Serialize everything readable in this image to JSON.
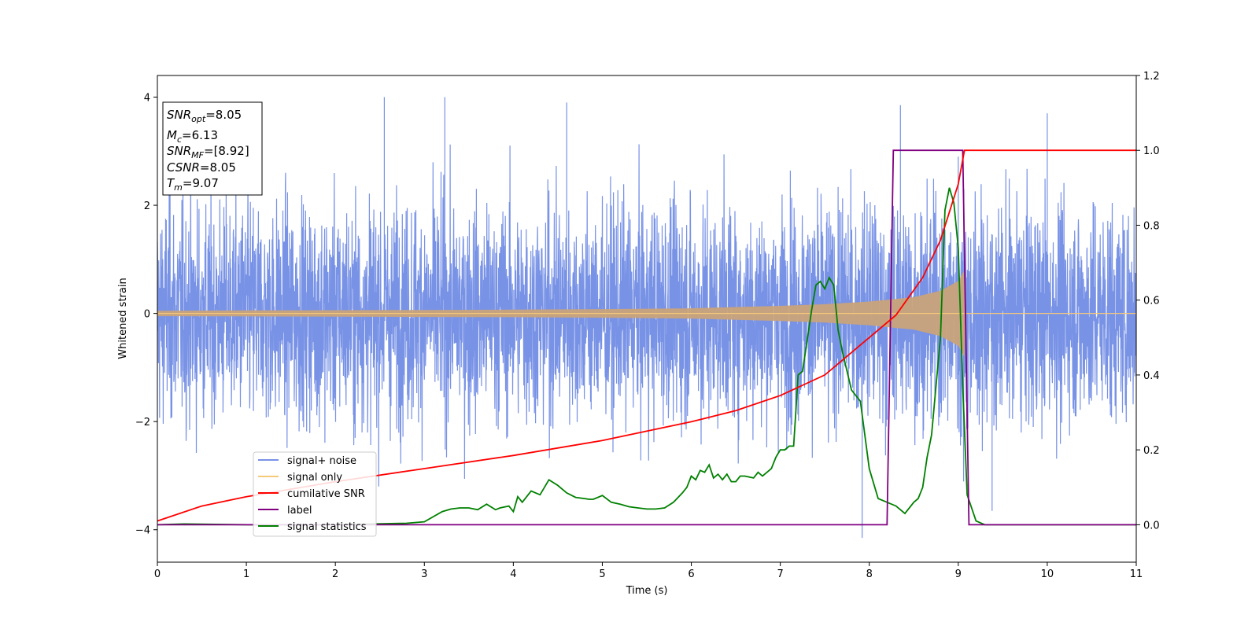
{
  "chart_data": {
    "type": "line",
    "xlabel": "Time (s)",
    "ylabel": "Whitened strain",
    "ylabel_right": "",
    "xlim": [
      0,
      11
    ],
    "ylim": [
      -4.6,
      4.4
    ],
    "ylim_right": [
      -0.1,
      1.2
    ],
    "xticks": [
      0,
      1,
      2,
      3,
      4,
      5,
      6,
      7,
      8,
      9,
      10,
      11
    ],
    "yticks": [
      -4,
      -2,
      0,
      2,
      4
    ],
    "yticks_right": [
      0.0,
      0.2,
      0.4,
      0.6,
      0.8,
      1.0,
      1.2
    ],
    "grid": false,
    "legend_position": "lower-left",
    "annotation": {
      "snr_opt": {
        "sym": "SNR",
        "sub": "opt",
        "value": "=8.05"
      },
      "mc": {
        "sym": "M",
        "sub": "c",
        "value": "=6.13"
      },
      "snr_mf": {
        "sym": "SNR",
        "sub": "MF",
        "value": "=[8.92]"
      },
      "csnr": {
        "sym": "CSNR",
        "sub": "",
        "value": "=8.05"
      },
      "tm": {
        "sym": "T",
        "sub": "m",
        "value": "=9.07"
      }
    },
    "series": [
      {
        "name": "signal+ noise",
        "axis": "left",
        "color": "#7892e6",
        "description_noise_sigma": 1.0,
        "x_range": [
          0,
          11
        ],
        "notable_peaks": [
          [
            2.55,
            4.0
          ],
          [
            3.23,
            4.0
          ],
          [
            4.6,
            3.9
          ],
          [
            8.35,
            3.85
          ],
          [
            9.0,
            2.9
          ],
          [
            10.0,
            3.7
          ],
          [
            7.92,
            -4.15
          ],
          [
            9.38,
            -3.65
          ]
        ]
      },
      {
        "name": "signal only",
        "axis": "left",
        "color": "#f5c87a",
        "x": [
          0,
          1,
          2,
          3,
          4,
          5,
          6,
          7,
          7.5,
          8,
          8.5,
          8.8,
          9.0,
          9.07,
          9.08,
          11
        ],
        "envelope": [
          0.05,
          0.055,
          0.06,
          0.065,
          0.07,
          0.08,
          0.095,
          0.14,
          0.17,
          0.22,
          0.3,
          0.42,
          0.6,
          0.8,
          0.0,
          0.0
        ]
      },
      {
        "name": "cumilative SNR",
        "axis": "right",
        "color": "#ff0000",
        "x": [
          0,
          0.5,
          1,
          2,
          3,
          4,
          5,
          6,
          6.5,
          7,
          7.5,
          8,
          8.3,
          8.6,
          8.8,
          9.0,
          9.07,
          11
        ],
        "y": [
          0.01,
          0.05,
          0.075,
          0.115,
          0.15,
          0.185,
          0.225,
          0.275,
          0.305,
          0.345,
          0.4,
          0.5,
          0.56,
          0.66,
          0.76,
          0.91,
          1.0,
          1.0
        ]
      },
      {
        "name": "label",
        "axis": "right",
        "color": "#800080",
        "x": [
          0,
          8.2,
          8.27,
          9.05,
          9.12,
          11
        ],
        "y": [
          0.0,
          0.0,
          1.0,
          1.0,
          0.0,
          0.0
        ]
      },
      {
        "name": "signal statistics",
        "axis": "right",
        "color": "#008000",
        "x": [
          0,
          0.3,
          1,
          2,
          2.4,
          2.8,
          3.0,
          3.2,
          3.3,
          3.4,
          3.5,
          3.6,
          3.7,
          3.8,
          3.85,
          3.95,
          4.0,
          4.05,
          4.1,
          4.2,
          4.3,
          4.4,
          4.5,
          4.6,
          4.7,
          4.8,
          4.85,
          4.9,
          5.0,
          5.1,
          5.2,
          5.3,
          5.4,
          5.5,
          5.6,
          5.7,
          5.8,
          5.9,
          5.95,
          6.0,
          6.05,
          6.1,
          6.15,
          6.2,
          6.25,
          6.3,
          6.35,
          6.4,
          6.45,
          6.5,
          6.55,
          6.6,
          6.7,
          6.75,
          6.8,
          6.85,
          6.9,
          6.95,
          7.0,
          7.05,
          7.1,
          7.15,
          7.2,
          7.25,
          7.3,
          7.35,
          7.4,
          7.45,
          7.5,
          7.55,
          7.6,
          7.65,
          7.7,
          7.8,
          7.9,
          8.0,
          8.1,
          8.2,
          8.3,
          8.35,
          8.4,
          8.5,
          8.55,
          8.6,
          8.65,
          8.7,
          8.75,
          8.8,
          8.85,
          8.9,
          8.95,
          9.0,
          9.05,
          9.1,
          9.2,
          9.3,
          11
        ],
        "y": [
          0.0,
          0.002,
          0.0,
          0.0,
          0.002,
          0.004,
          0.008,
          0.035,
          0.042,
          0.045,
          0.045,
          0.04,
          0.055,
          0.04,
          0.045,
          0.05,
          0.035,
          0.075,
          0.06,
          0.09,
          0.08,
          0.12,
          0.105,
          0.085,
          0.073,
          0.07,
          0.068,
          0.068,
          0.078,
          0.06,
          0.055,
          0.048,
          0.045,
          0.042,
          0.042,
          0.045,
          0.06,
          0.085,
          0.1,
          0.13,
          0.12,
          0.145,
          0.14,
          0.16,
          0.125,
          0.135,
          0.12,
          0.135,
          0.115,
          0.115,
          0.13,
          0.13,
          0.125,
          0.14,
          0.13,
          0.14,
          0.15,
          0.18,
          0.2,
          0.2,
          0.21,
          0.21,
          0.4,
          0.41,
          0.49,
          0.57,
          0.64,
          0.65,
          0.63,
          0.66,
          0.64,
          0.52,
          0.46,
          0.36,
          0.33,
          0.15,
          0.07,
          0.06,
          0.05,
          0.04,
          0.03,
          0.06,
          0.07,
          0.1,
          0.18,
          0.24,
          0.37,
          0.5,
          0.84,
          0.9,
          0.86,
          0.74,
          0.37,
          0.08,
          0.01,
          0.0,
          0.0
        ]
      }
    ]
  }
}
